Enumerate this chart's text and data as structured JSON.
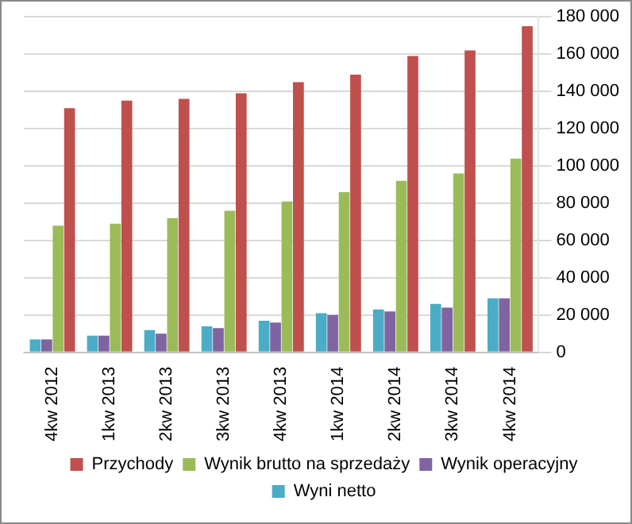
{
  "chart_data": {
    "type": "bar",
    "categories": [
      "4kw 2012",
      "1kw 2013",
      "2kw 2013",
      "3kw 2013",
      "4kw 2013",
      "1kw 2014",
      "2kw 2014",
      "3kw 2014",
      "4kw 2014"
    ],
    "series": [
      {
        "name": "Przychody",
        "color": "#c0504d",
        "values": [
          131000,
          135000,
          136000,
          139000,
          145000,
          149000,
          159000,
          162000,
          175000
        ]
      },
      {
        "name": "Wynik brutto na sprzedaży",
        "color": "#9bbb59",
        "values": [
          68000,
          69000,
          72000,
          76000,
          81000,
          86000,
          92000,
          96000,
          104000
        ]
      },
      {
        "name": "Wynik operacyjny",
        "color": "#8064a2",
        "values": [
          7000,
          9000,
          10000,
          13000,
          16000,
          20000,
          22000,
          24000,
          29000
        ]
      },
      {
        "name": "Wyni netto",
        "color": "#4bacc6",
        "values": [
          7000,
          9000,
          12000,
          14000,
          17000,
          21000,
          23000,
          26000,
          29000
        ]
      }
    ],
    "ylim": [
      0,
      180000
    ],
    "yticks": [
      0,
      {
        "value": 20000,
        "label": "20 000"
      },
      {
        "value": 40000,
        "label": "40 000"
      },
      {
        "value": 60000,
        "label": "60 000"
      },
      {
        "value": 80000,
        "label": "80 000"
      },
      {
        "value": 100000,
        "label": "100 000"
      },
      {
        "value": 120000,
        "label": "120 000"
      },
      {
        "value": 140000,
        "label": "140 000"
      },
      {
        "value": 160000,
        "label": "160 000"
      },
      {
        "value": 180000,
        "label": "180 000"
      }
    ],
    "grid": "y",
    "legend": "bottom"
  }
}
